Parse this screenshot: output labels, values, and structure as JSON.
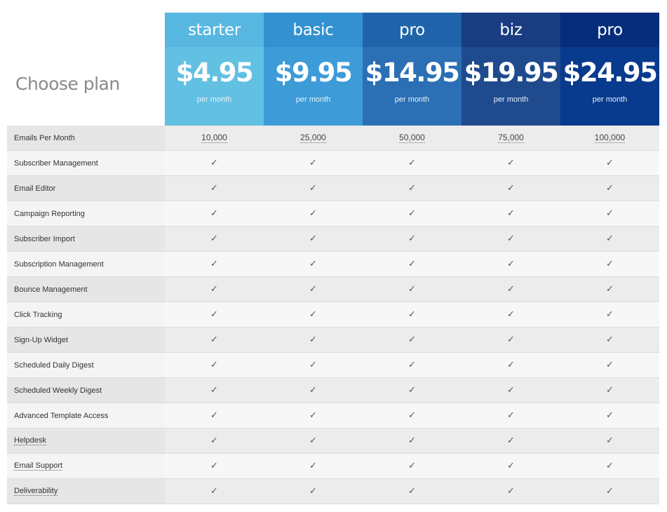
{
  "title": "Choose plan",
  "plans": [
    {
      "name": "starter",
      "price": "$4.95",
      "period": "per month",
      "name_color": "#57b7e0",
      "price_color": "#62c0e2"
    },
    {
      "name": "basic",
      "price": "$9.95",
      "period": "per month",
      "name_color": "#3391d2",
      "price_color": "#3d9bd7"
    },
    {
      "name": "pro",
      "price": "$14.95",
      "period": "per month",
      "name_color": "#1f64aa",
      "price_color": "#2b6fb4"
    },
    {
      "name": "biz",
      "price": "$19.95",
      "period": "per month",
      "name_color": "#1a3c80",
      "price_color": "#1f4b8e"
    },
    {
      "name": "pro",
      "price": "$24.95",
      "period": "per month",
      "name_color": "#062d7b",
      "price_color": "#083a8d"
    }
  ],
  "features": [
    {
      "label": "Emails Per Month",
      "values": [
        "10,000",
        "25,000",
        "50,000",
        "75,000",
        "100,000"
      ]
    },
    {
      "label": "Subscriber Management"
    },
    {
      "label": "Email Editor"
    },
    {
      "label": "Campaign Reporting"
    },
    {
      "label": "Subscriber Import"
    },
    {
      "label": "Subscription Management"
    },
    {
      "label": "Bounce Management"
    },
    {
      "label": "Click Tracking"
    },
    {
      "label": "Sign-Up Widget"
    },
    {
      "label": "Scheduled Daily Digest"
    },
    {
      "label": "Scheduled Weekly Digest"
    },
    {
      "label": "Advanced Template Access"
    },
    {
      "label": "Helpdesk",
      "link": true
    },
    {
      "label": "Email Support",
      "link": true
    },
    {
      "label": "Deliverability",
      "link": true
    }
  ],
  "check_icon": "check-icon",
  "check_glyph": "✓"
}
